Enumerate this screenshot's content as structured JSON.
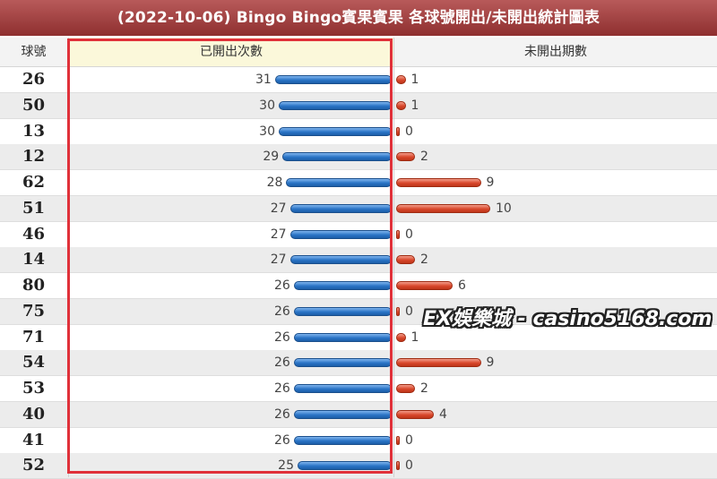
{
  "title": "(2022-10-06) Bingo Bingo賓果賓果 各球號開出/未開出統計圖表",
  "headers": {
    "number": "球號",
    "drawn_count": "已開出次數",
    "missed_periods": "未開出期數"
  },
  "watermark": "EX娛樂城 - casino5168.com",
  "colors": {
    "drawn_bar": "#2a74c6",
    "missed_bar": "#d9482c",
    "title_bar": "#a24545",
    "highlight": "#e0313a"
  },
  "chart_data": {
    "type": "bar",
    "title": "(2022-10-06) Bingo Bingo賓果賓果 各球號開出/未開出統計圖表",
    "categories": [
      "26",
      "50",
      "13",
      "12",
      "62",
      "51",
      "46",
      "14",
      "80",
      "75",
      "71",
      "54",
      "53",
      "40",
      "41",
      "52"
    ],
    "series": [
      {
        "name": "已開出次數",
        "values": [
          31,
          30,
          30,
          29,
          28,
          27,
          27,
          27,
          26,
          26,
          26,
          26,
          26,
          26,
          26,
          25
        ]
      },
      {
        "name": "未開出期數",
        "values": [
          1,
          1,
          0,
          2,
          9,
          10,
          0,
          2,
          6,
          0,
          1,
          9,
          2,
          4,
          0,
          0
        ]
      }
    ],
    "orientation": "horizontal",
    "grid": false
  }
}
